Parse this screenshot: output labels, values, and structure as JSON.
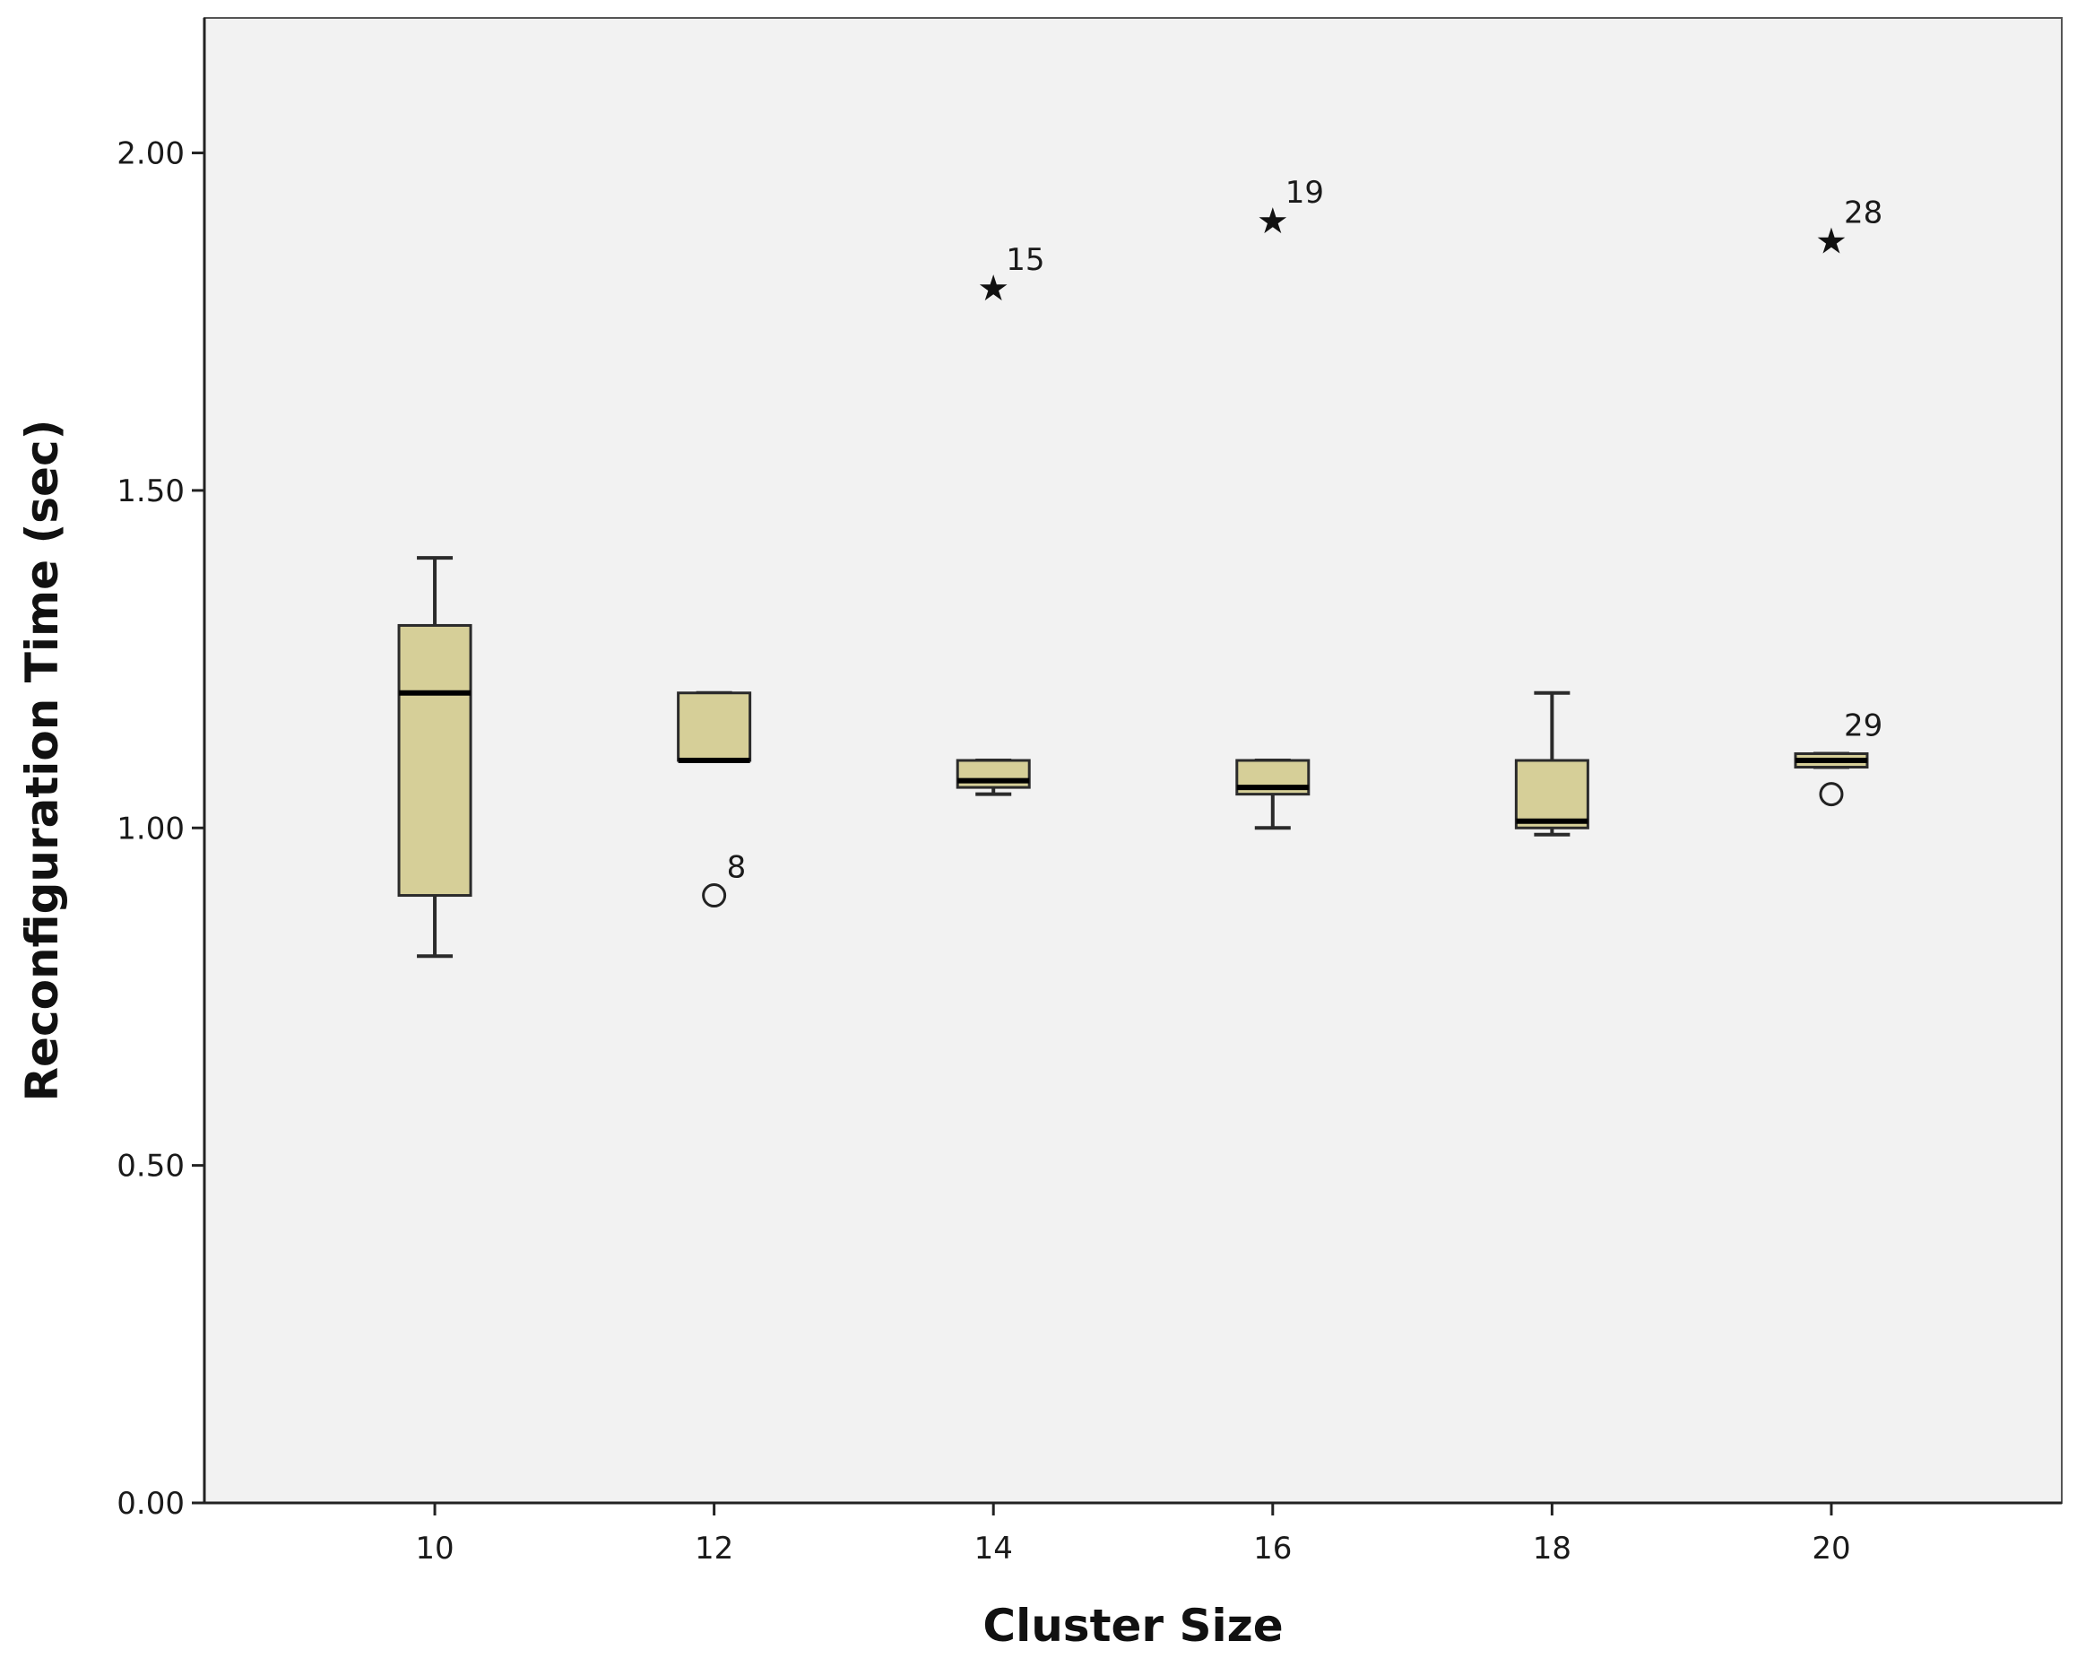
{
  "chart_data": {
    "type": "box",
    "title": "",
    "xlabel": "Cluster Size",
    "ylabel": "Reconfiguration Time (sec)",
    "ylim": [
      0,
      2.2
    ],
    "yticks": [
      "0.00",
      "0.50",
      "1.00",
      "1.50",
      "2.00"
    ],
    "ytick_values": [
      0,
      0.5,
      1.0,
      1.5,
      2.0
    ],
    "categories": [
      "10",
      "12",
      "14",
      "16",
      "18",
      "20"
    ],
    "x_values": [
      10,
      12,
      14,
      16,
      18,
      20
    ],
    "xlim": [
      8.35,
      21.65
    ],
    "grid": false,
    "colors": {
      "box_fill": "#d6cf98",
      "box_stroke": "#2b2b2b",
      "plot_bg": "#f2f2f2",
      "axis": "#222222"
    },
    "boxes": [
      {
        "category": "10",
        "whisker_low": 0.81,
        "q1": 0.9,
        "median": 1.2,
        "q3": 1.3,
        "whisker_high": 1.4
      },
      {
        "category": "12",
        "whisker_low": 1.1,
        "q1": 1.1,
        "median": 1.1,
        "q3": 1.2,
        "whisker_high": 1.2
      },
      {
        "category": "14",
        "whisker_low": 1.05,
        "q1": 1.06,
        "median": 1.07,
        "q3": 1.1,
        "whisker_high": 1.1
      },
      {
        "category": "16",
        "whisker_low": 1.0,
        "q1": 1.05,
        "median": 1.06,
        "q3": 1.1,
        "whisker_high": 1.1
      },
      {
        "category": "18",
        "whisker_low": 0.99,
        "q1": 1.0,
        "median": 1.01,
        "q3": 1.1,
        "whisker_high": 1.2
      },
      {
        "category": "20",
        "whisker_low": 1.09,
        "q1": 1.09,
        "median": 1.1,
        "q3": 1.11,
        "whisker_high": 1.11
      }
    ],
    "outliers": [
      {
        "category": "12",
        "x": 12,
        "y": 0.9,
        "marker": "circle",
        "label": "8"
      },
      {
        "category": "14",
        "x": 14,
        "y": 1.8,
        "marker": "star",
        "label": "15"
      },
      {
        "category": "16",
        "x": 16,
        "y": 1.9,
        "marker": "star",
        "label": "19"
      },
      {
        "category": "20",
        "x": 20,
        "y": 1.87,
        "marker": "star",
        "label": "28"
      },
      {
        "category": "20",
        "x": 20,
        "y": 1.05,
        "marker": "circle",
        "label": ""
      },
      {
        "category": "20",
        "x": 20,
        "y": 1.11,
        "marker": "none",
        "label": "29"
      }
    ]
  }
}
